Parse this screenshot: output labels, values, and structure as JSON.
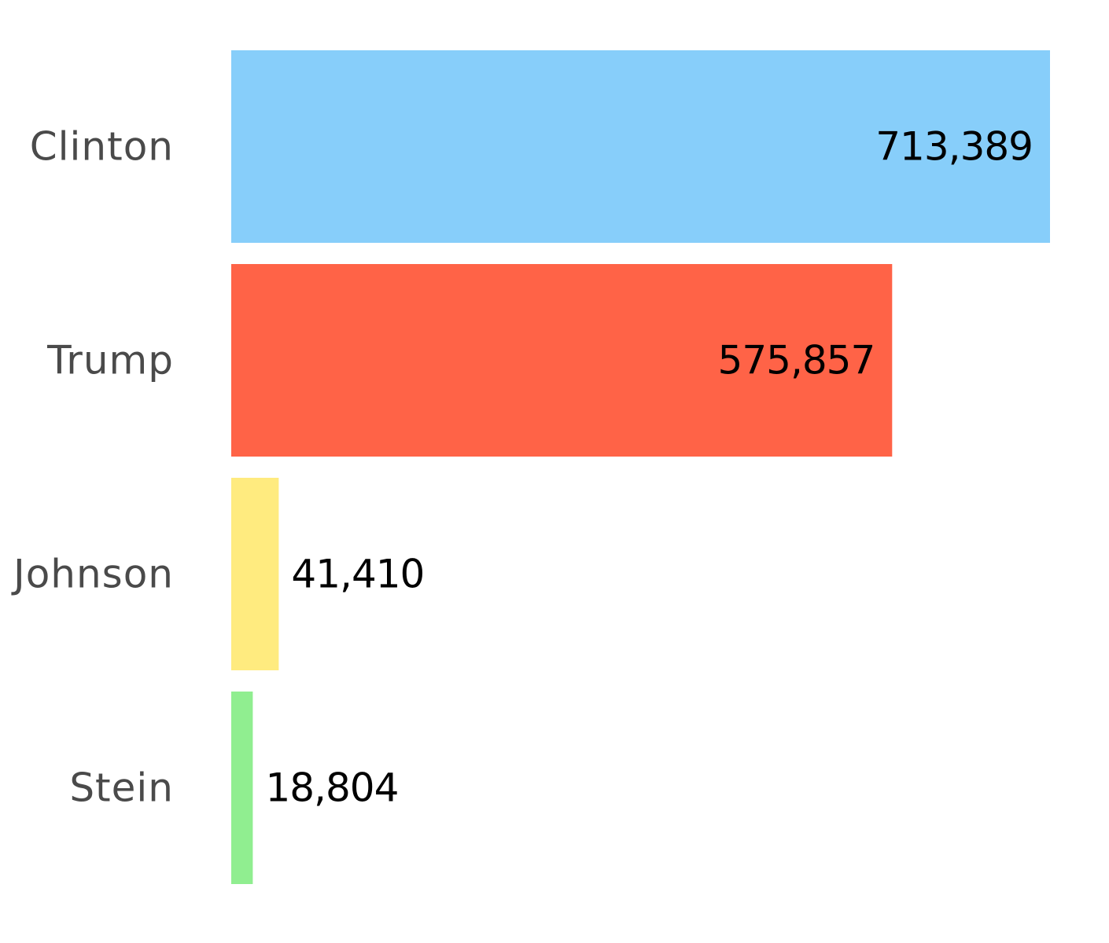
{
  "chart_data": {
    "type": "bar",
    "orientation": "horizontal",
    "categories": [
      "Clinton",
      "Trump",
      "Johnson",
      "Stein"
    ],
    "values": [
      713389,
      575857,
      41410,
      18804
    ],
    "value_labels": [
      "713,389",
      "575,857",
      "41,410",
      "18,804"
    ],
    "colors": [
      "#87cefa",
      "#ff6347",
      "#ffeb7f",
      "#90ee90"
    ],
    "title": "",
    "xlabel": "",
    "ylabel": "",
    "xlim": [
      0,
      713389
    ],
    "grid": false,
    "legend": "none"
  }
}
